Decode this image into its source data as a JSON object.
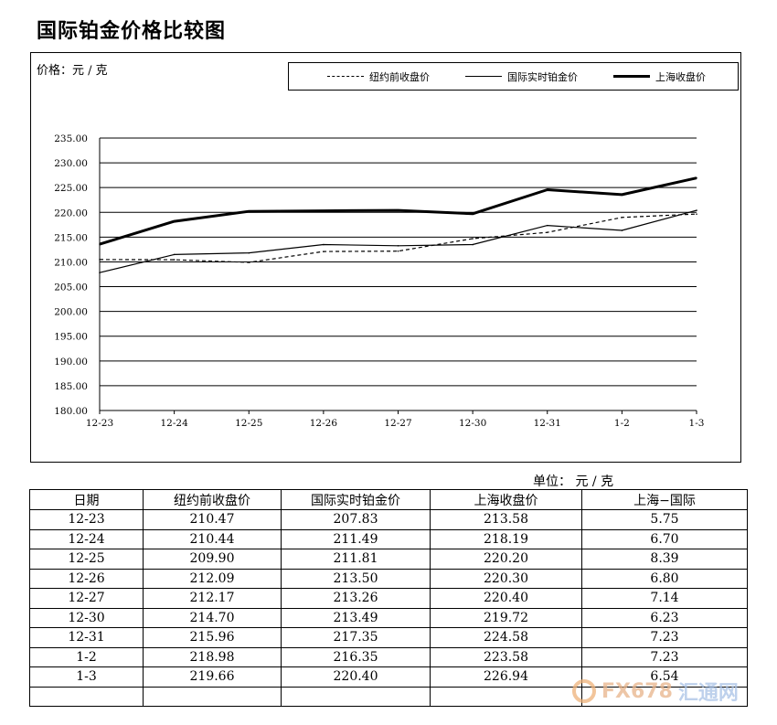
{
  "title": "国际铂金价格比较图",
  "chart_data": {
    "type": "line",
    "ylabel": "价格：元 / 克",
    "categories": [
      "12-23",
      "12-24",
      "12-25",
      "12-26",
      "12-27",
      "12-30",
      "12-31",
      "1-2",
      "1-3"
    ],
    "ylim": [
      180,
      235
    ],
    "ytick_labels": [
      "235.00",
      "230.00",
      "225.00",
      "220.00",
      "215.00",
      "210.00",
      "205.00",
      "200.00",
      "195.00",
      "190.00",
      "185.00",
      "180.00"
    ],
    "grid": "horizontal",
    "legend_position": "top",
    "series": [
      {
        "name": "纽约前收盘价",
        "style": "dashed",
        "values": [
          210.47,
          210.44,
          209.9,
          212.09,
          212.17,
          214.7,
          215.96,
          218.98,
          219.66
        ]
      },
      {
        "name": "国际实时铂金价",
        "style": "thin",
        "values": [
          207.83,
          211.49,
          211.81,
          213.5,
          213.26,
          213.49,
          217.35,
          216.35,
          220.4
        ]
      },
      {
        "name": "上海收盘价",
        "style": "thick",
        "values": [
          213.58,
          218.19,
          220.2,
          220.3,
          220.4,
          219.72,
          224.58,
          223.58,
          226.94
        ]
      }
    ]
  },
  "table": {
    "unit": "单位：  元 / 克",
    "headers": [
      "日期",
      "纽约前收盘价",
      "国际实时铂金价",
      "上海收盘价",
      "上海−国际"
    ],
    "rows": [
      [
        "12-23",
        "210.47",
        "207.83",
        "213.58",
        "5.75"
      ],
      [
        "12-24",
        "210.44",
        "211.49",
        "218.19",
        "6.70"
      ],
      [
        "12-25",
        "209.90",
        "211.81",
        "220.20",
        "8.39"
      ],
      [
        "12-26",
        "212.09",
        "213.50",
        "220.30",
        "6.80"
      ],
      [
        "12-27",
        "212.17",
        "213.26",
        "220.40",
        "7.14"
      ],
      [
        "12-30",
        "214.70",
        "213.49",
        "219.72",
        "6.23"
      ],
      [
        "12-31",
        "215.96",
        "217.35",
        "224.58",
        "7.23"
      ],
      [
        "1-2",
        "218.98",
        "216.35",
        "223.58",
        "7.23"
      ],
      [
        "1-3",
        "219.66",
        "220.40",
        "226.94",
        "6.54"
      ],
      [
        "",
        "",
        "",
        "",
        ""
      ]
    ]
  },
  "watermark": {
    "brand": "FX678",
    "text": "汇通网"
  },
  "colors": {
    "line": "#000000",
    "background": "#ffffff",
    "watermark_orange": "#e8b48a",
    "watermark_blue": "#a9c2e6"
  }
}
